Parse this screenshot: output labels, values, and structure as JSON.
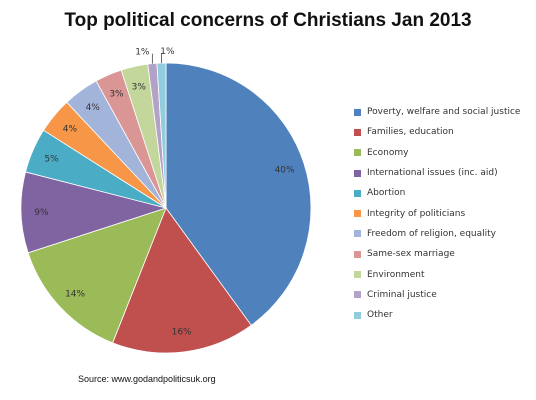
{
  "chart_data": {
    "type": "pie",
    "title": "Top political concerns of Christians Jan 2013",
    "categories": [
      "Poverty, welfare and social justice",
      "Families, education",
      "Economy",
      "International issues (inc. aid)",
      "Abortion",
      "Integrity of politicians",
      "Freedom of religion, equality",
      "Same-sex marriage",
      "Environment",
      "Criminal justice",
      "Other"
    ],
    "values": [
      40,
      16,
      14,
      9,
      5,
      4,
      4,
      3,
      3,
      1,
      1
    ],
    "value_labels": [
      "40%",
      "16%",
      "14%",
      "9%",
      "5%",
      "4%",
      "4%",
      "3%",
      "3%",
      "1%",
      "1%"
    ],
    "colors": [
      "#4f81bd",
      "#c0504d",
      "#9bbb59",
      "#8064a2",
      "#4bacc6",
      "#f79646",
      "#a3b4db",
      "#d99694",
      "#c3d69b",
      "#b3a2c7",
      "#93cddd"
    ],
    "legend_position": "right",
    "source": "Source: www.godandpoliticsuk.org"
  }
}
